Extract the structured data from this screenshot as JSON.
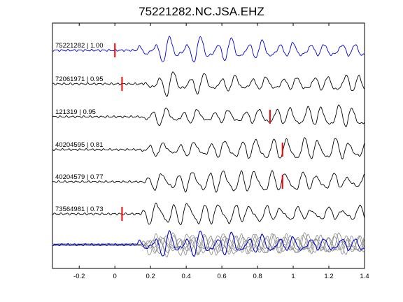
{
  "chart_data": {
    "type": "line",
    "title": "75221282.NC.JSA.EHZ",
    "xlabel": "",
    "ylabel": "",
    "xlim": [
      -0.35,
      1.4
    ],
    "xticks": [
      -0.2,
      0,
      0.2,
      0.4,
      0.6,
      0.8,
      1,
      1.2,
      1.4
    ],
    "xtick_labels": [
      "-0.2",
      "0",
      "0.2",
      "0.4",
      "0.6",
      "0.8",
      "1",
      "1.2",
      "1.4"
    ],
    "grid": false,
    "legend": "none",
    "colors": {
      "reference": "#0000cc",
      "trace": "#000000",
      "overlay": "#888888",
      "pick": "#ff0000"
    },
    "series": [
      {
        "label": "75221282 | 1.00",
        "pick": 0.0,
        "color": "#0000cc",
        "onset": 0.12
      },
      {
        "label": "72061971 | 0.95",
        "pick": 0.04,
        "color": "#000000",
        "onset": 0.16
      },
      {
        "label": "121319 | 0.95",
        "pick": 0.87,
        "color": "#000000",
        "onset": 0.14
      },
      {
        "label": "40204595 | 0.81",
        "pick": 0.94,
        "color": "#000000",
        "onset": 0.14
      },
      {
        "label": "40204579 | 0.77",
        "pick": 0.94,
        "color": "#000000",
        "onset": 0.15
      },
      {
        "label": "73564981 | 0.73",
        "pick": 0.04,
        "color": "#000000",
        "onset": 0.14
      }
    ],
    "stack": {
      "type": "overlay",
      "reference_color": "#0000cc",
      "overlay_color": "#888888"
    }
  }
}
